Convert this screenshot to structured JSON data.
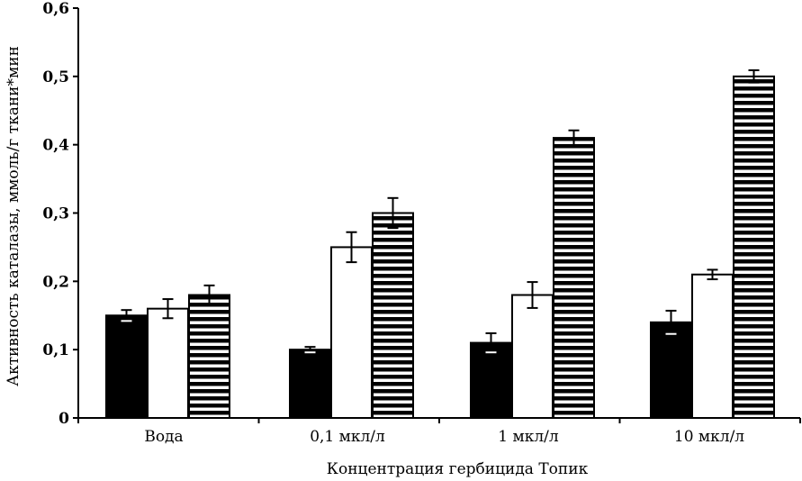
{
  "chart_data": {
    "type": "bar",
    "title": "",
    "xlabel": "Концентрация гербицида Топик",
    "ylabel": "Активность каталазы, ммоль/г ткани*мин",
    "categories": [
      "Вода",
      "0,1 мкл/л",
      "1 мкл/л",
      "10 мкл/л"
    ],
    "ylim": [
      0,
      0.6
    ],
    "yticks": [
      "0",
      "0,1",
      "0,2",
      "0,3",
      "0,4",
      "0,5",
      "0,6"
    ],
    "grid": false,
    "legend": "none",
    "series": [
      {
        "values": [
          0.15,
          0.1,
          0.11,
          0.14
        ],
        "errors": [
          0.008,
          0.004,
          0.014,
          0.017
        ],
        "fill": "solid",
        "color": "#000000"
      },
      {
        "values": [
          0.16,
          0.25,
          0.18,
          0.21
        ],
        "errors": [
          0.014,
          0.022,
          0.019,
          0.007
        ],
        "fill": "empty",
        "color": "#ffffff"
      },
      {
        "values": [
          0.18,
          0.3,
          0.41,
          0.5
        ],
        "errors": [
          0.014,
          0.022,
          0.011,
          0.009
        ],
        "fill": "horizontal-stripes",
        "color": "#000000"
      }
    ]
  }
}
